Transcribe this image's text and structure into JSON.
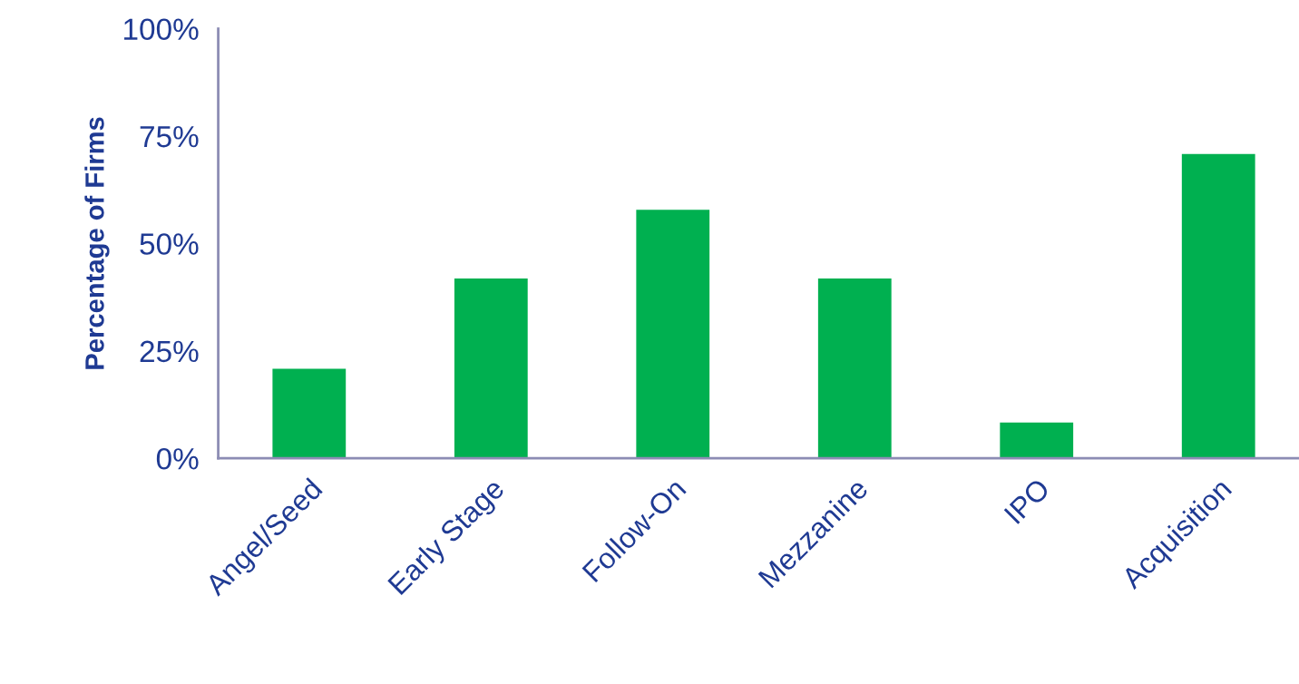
{
  "chart_data": {
    "type": "bar",
    "ylabel": "Percentage of Firms",
    "categories": [
      "Angel/Seed",
      "Early Stage",
      "Follow-On",
      "Mezzanine",
      "IPO",
      "Acquisition"
    ],
    "values": [
      21,
      42,
      58,
      42,
      8.5,
      71
    ],
    "color": "#00b050",
    "ylim": [
      0,
      100
    ],
    "yticks": [
      {
        "value": 0,
        "label": "0%"
      },
      {
        "value": 25,
        "label": "25%"
      },
      {
        "value": 50,
        "label": "50%"
      },
      {
        "value": 75,
        "label": "75%"
      },
      {
        "value": 100,
        "label": "100%"
      }
    ],
    "grid": false,
    "legend": false
  }
}
